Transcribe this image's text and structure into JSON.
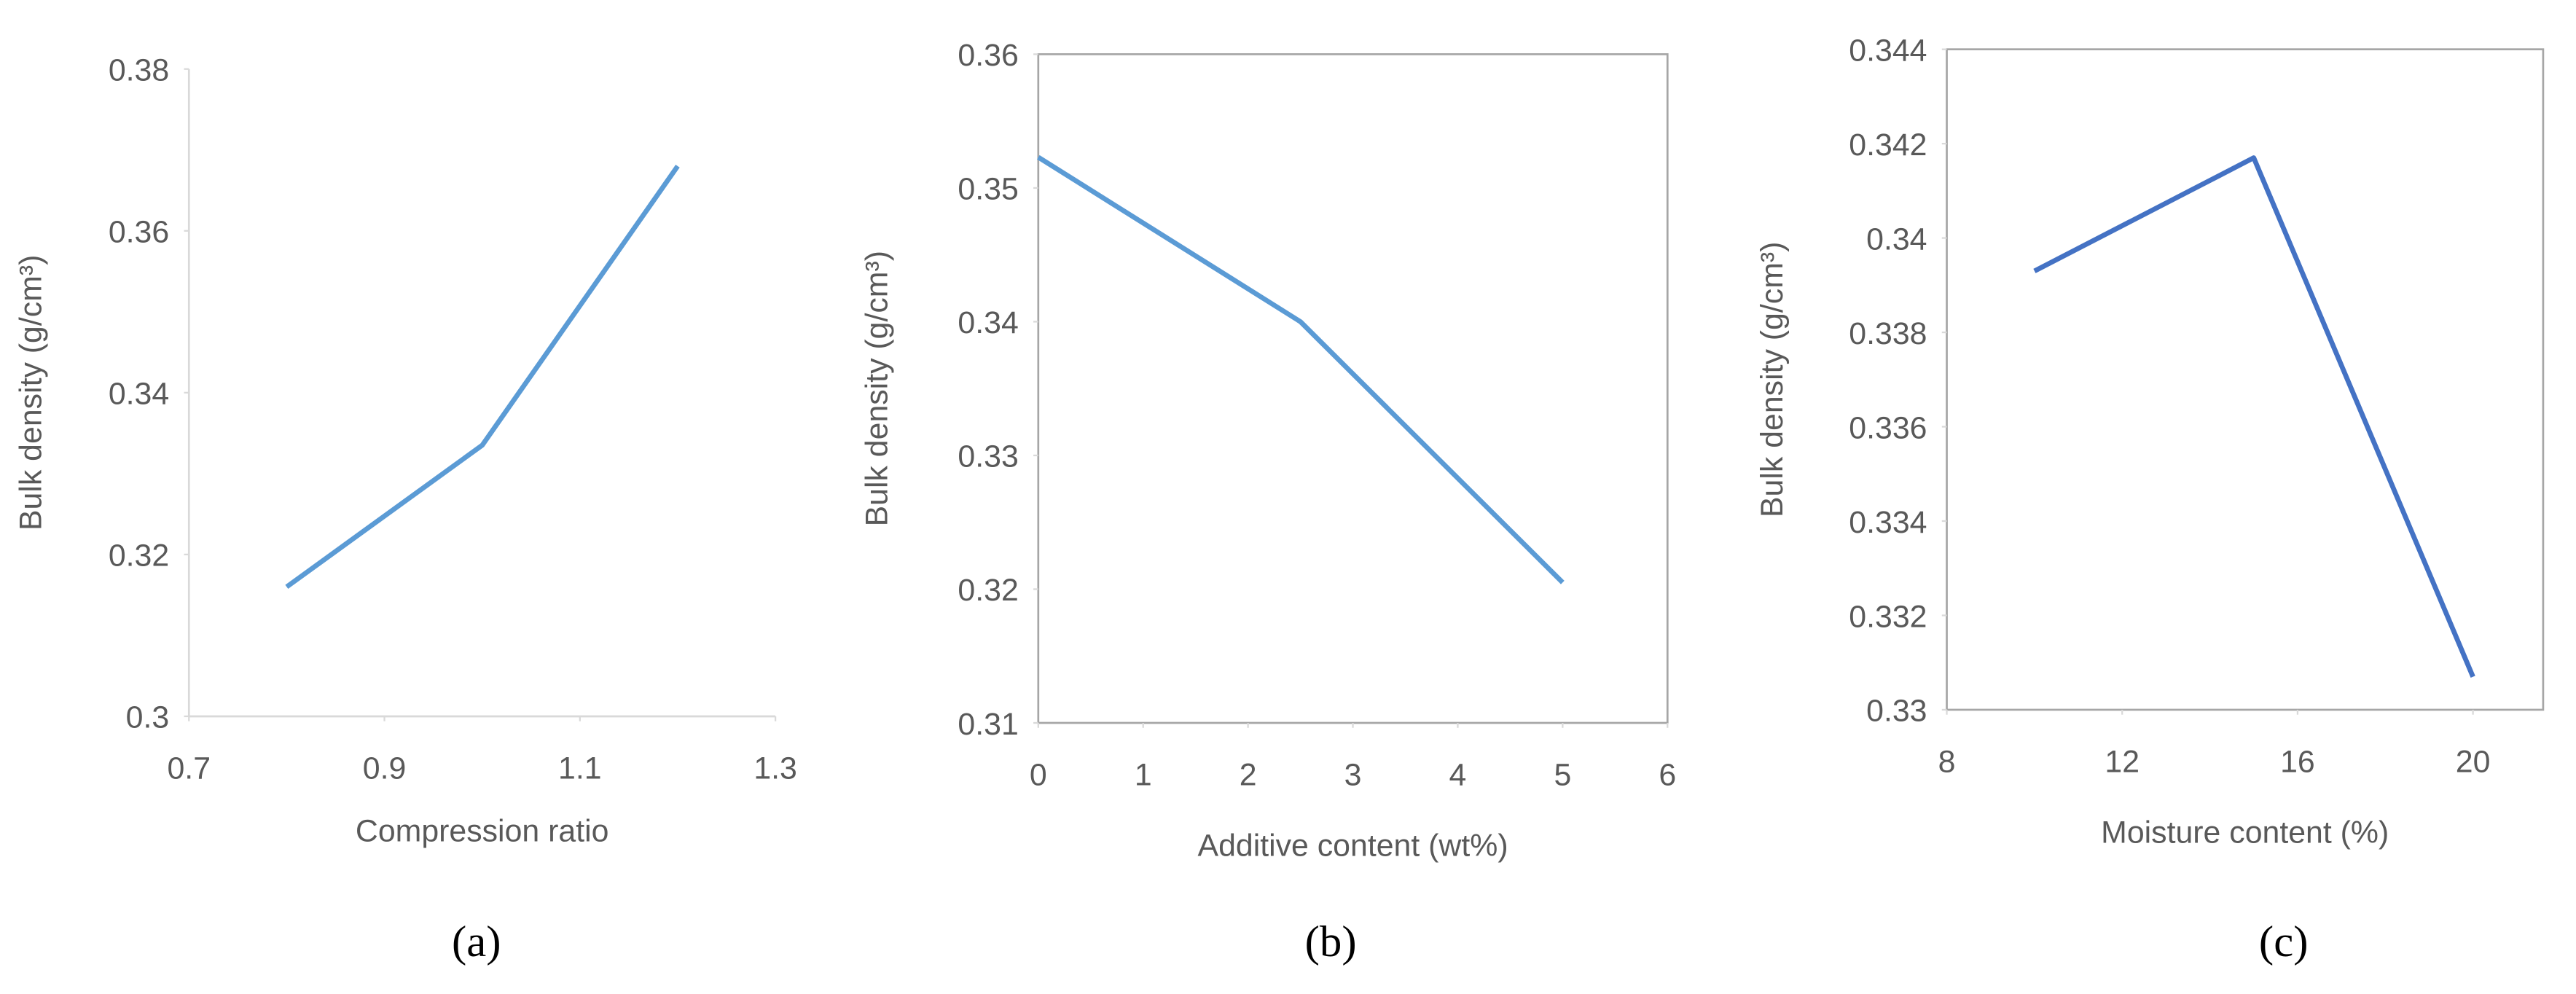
{
  "chart_data": [
    {
      "type": "line",
      "caption": "(a)",
      "x_label": "Compression ratio",
      "y_label": "Bulk density (g/cm³)",
      "x": [
        0.8,
        1.0,
        1.2
      ],
      "values": [
        0.316,
        0.3335,
        0.368
      ],
      "color": "#5b9bd5",
      "xlim": [
        0.7,
        1.3
      ],
      "xticks": [
        0.7,
        0.9,
        1.1,
        1.3
      ],
      "ylim": [
        0.3,
        0.38
      ],
      "yticks": [
        0.3,
        0.32,
        0.34,
        0.36,
        0.38
      ],
      "border": false
    },
    {
      "type": "line",
      "caption": "(b)",
      "x_label": "Additive content (wt%)",
      "y_label": "Bulk density (g/cm³)",
      "x": [
        0,
        2.5,
        5
      ],
      "values": [
        0.3523,
        0.34,
        0.3205
      ],
      "color": "#5b9bd5",
      "xlim": [
        0,
        6
      ],
      "xticks": [
        0,
        1,
        2,
        3,
        4,
        5,
        6
      ],
      "ylim": [
        0.31,
        0.36
      ],
      "yticks": [
        0.31,
        0.32,
        0.33,
        0.34,
        0.35,
        0.36
      ],
      "border": true
    },
    {
      "type": "line",
      "caption": "(c)",
      "x_label": "Moisture content (%)",
      "y_label": "Bulk density (g/cm³)",
      "x": [
        10,
        15,
        20
      ],
      "values": [
        0.3393,
        0.3417,
        0.3307
      ],
      "color": "#4472c4",
      "xlim": [
        8,
        21.6
      ],
      "xticks": [
        8,
        12,
        16,
        20
      ],
      "ylim": [
        0.33,
        0.344
      ],
      "yticks": [
        0.33,
        0.332,
        0.334,
        0.336,
        0.338,
        0.34,
        0.342,
        0.344
      ],
      "border": true
    }
  ]
}
